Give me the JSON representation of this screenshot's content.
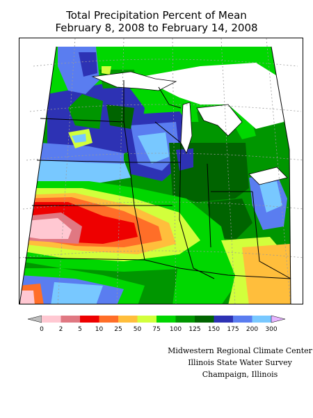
{
  "title": {
    "line1": "Total Precipitation Percent of Mean",
    "line2": "February 8, 2008 to February 14, 2008"
  },
  "legend": {
    "labels": [
      "0",
      "2",
      "5",
      "10",
      "25",
      "50",
      "75",
      "100",
      "125",
      "150",
      "175",
      "200",
      "300"
    ],
    "colors": [
      "#bebebe",
      "#ffc8d2",
      "#e07882",
      "#ee0000",
      "#ff6e28",
      "#ffbe3c",
      "#d2ff3c",
      "#00d700",
      "#009600",
      "#006400",
      "#2d32b4",
      "#5a7df0",
      "#78c8ff",
      "#e6b4ff"
    ]
  },
  "credits": {
    "line1": "Midwestern Regional Climate Center",
    "line2": "Illinois State Water Survey",
    "line3": "Champaign, Illinois"
  },
  "map": {
    "region": "Upper Midwest",
    "colors": {
      "lakes": "#ffffff",
      "boundaries": "#000000",
      "graticule": "#9a9a9a"
    }
  }
}
